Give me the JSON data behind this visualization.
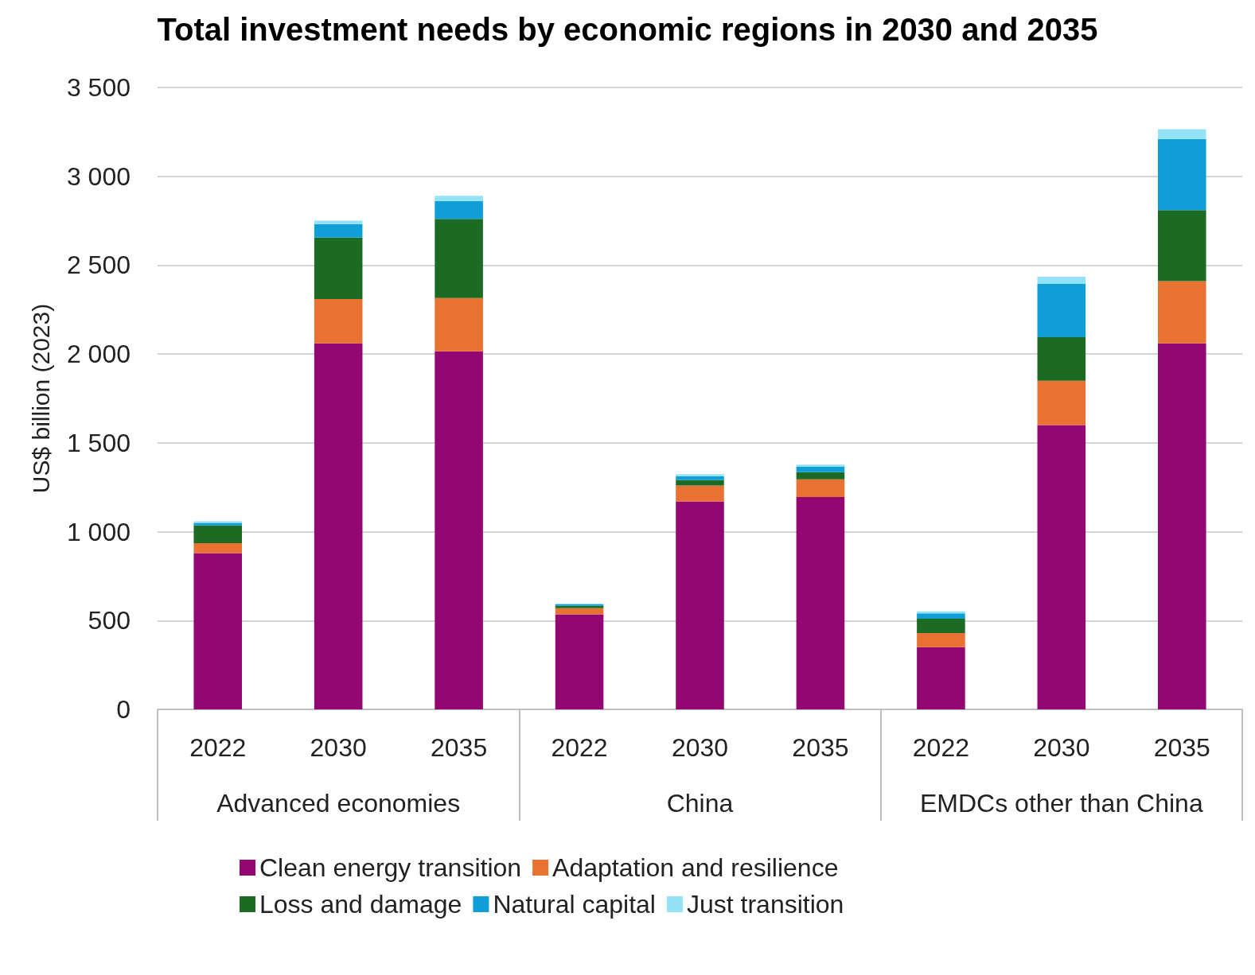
{
  "chart_data": {
    "type": "bar",
    "stacked": true,
    "title": "Total investment needs by economic regions in 2030 and 2035",
    "ylabel": "US$ billion (2023)",
    "categories": [
      "2022",
      "2030",
      "2035",
      "2022",
      "2030",
      "2035",
      "2022",
      "2030",
      "2035"
    ],
    "annotations": [
      "Advanced economies",
      "China",
      "EMDCs other than China"
    ],
    "series": [
      {
        "name": "Clean energy transition",
        "color": "#930772",
        "values": [
          880,
          2060,
          2015,
          535,
          1170,
          1195,
          350,
          1600,
          2060
        ]
      },
      {
        "name": "Adaptation and resilience",
        "color": "#e97132",
        "values": [
          55,
          250,
          300,
          35,
          90,
          100,
          80,
          250,
          350
        ]
      },
      {
        "name": "Loss and damage",
        "color": "#1b6b24",
        "values": [
          100,
          345,
          445,
          13,
          30,
          40,
          80,
          245,
          400
        ]
      },
      {
        "name": "Natural capital",
        "color": "#0f9ed5",
        "values": [
          15,
          75,
          100,
          8,
          22,
          30,
          30,
          300,
          400
        ]
      },
      {
        "name": "Just transition",
        "color": "#94e2f5",
        "values": [
          8,
          20,
          30,
          4,
          12,
          12,
          12,
          40,
          55
        ]
      }
    ],
    "ylim": [
      0,
      3500
    ],
    "yticks": [
      0,
      500,
      {
        "value": 1000,
        "label": "1 000"
      },
      {
        "value": 1500,
        "label": "1 500"
      },
      {
        "value": 2000,
        "label": "2 000"
      },
      {
        "value": 2500,
        "label": "2 500"
      },
      {
        "value": 3000,
        "label": "3 000"
      },
      {
        "value": 3500,
        "label": "3 500"
      }
    ],
    "grid": "y",
    "legend": "bottom"
  }
}
